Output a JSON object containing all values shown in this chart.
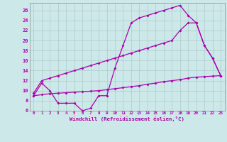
{
  "xlabel": "Windchill (Refroidissement éolien,°C)",
  "bg_color": "#cde8e8",
  "grid_color": "#a8cccc",
  "line_color": "#aa00aa",
  "xlim": [
    -0.5,
    23.5
  ],
  "ylim": [
    6,
    27.5
  ],
  "yticks": [
    6,
    8,
    10,
    12,
    14,
    16,
    18,
    20,
    22,
    24,
    26
  ],
  "xticks": [
    0,
    1,
    2,
    3,
    4,
    5,
    6,
    7,
    8,
    9,
    10,
    11,
    12,
    13,
    14,
    15,
    16,
    17,
    18,
    19,
    20,
    21,
    22,
    23
  ],
  "line1_x": [
    0,
    1,
    2,
    3,
    4,
    5,
    6,
    7,
    8,
    9,
    10,
    11,
    12,
    13,
    14,
    15,
    16,
    17,
    18,
    19,
    20,
    21,
    22,
    23
  ],
  "line1_y": [
    9,
    11.5,
    10,
    7.5,
    7.5,
    7.5,
    6.0,
    6.5,
    9.0,
    9.0,
    14.5,
    19.0,
    23.5,
    24.5,
    25.0,
    25.5,
    26.0,
    26.5,
    27.0,
    25.0,
    23.5,
    19.0,
    16.5,
    13.0
  ],
  "line2_x": [
    0,
    1,
    2,
    3,
    4,
    5,
    6,
    7,
    8,
    9,
    10,
    11,
    12,
    13,
    14,
    15,
    16,
    17,
    18,
    19,
    20,
    21,
    22,
    23
  ],
  "line2_y": [
    9.5,
    12,
    12.5,
    13,
    13.5,
    14,
    14.5,
    15,
    15.5,
    16,
    16.5,
    17,
    17.5,
    18,
    18.5,
    19,
    19.5,
    20,
    22,
    23.5,
    23.5,
    19.0,
    16.5,
    13.0
  ],
  "line3_x": [
    0,
    1,
    2,
    3,
    4,
    5,
    6,
    7,
    8,
    9,
    10,
    11,
    12,
    13,
    14,
    15,
    16,
    17,
    18,
    19,
    20,
    21,
    22,
    23
  ],
  "line3_y": [
    9.0,
    9.2,
    9.4,
    9.5,
    9.6,
    9.7,
    9.8,
    9.9,
    10.0,
    10.2,
    10.4,
    10.6,
    10.8,
    11.0,
    11.3,
    11.5,
    11.8,
    12.0,
    12.2,
    12.5,
    12.7,
    12.8,
    12.9,
    13.0
  ]
}
